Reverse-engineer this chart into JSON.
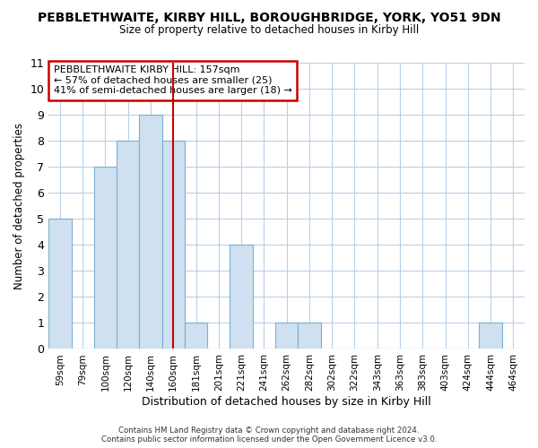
{
  "title": "PEBBLETHWAITE, KIRBY HILL, BOROUGHBRIDGE, YORK, YO51 9DN",
  "subtitle": "Size of property relative to detached houses in Kirby Hill",
  "xlabel": "Distribution of detached houses by size in Kirby Hill",
  "ylabel": "Number of detached properties",
  "bin_labels": [
    "59sqm",
    "79sqm",
    "100sqm",
    "120sqm",
    "140sqm",
    "160sqm",
    "181sqm",
    "201sqm",
    "221sqm",
    "241sqm",
    "262sqm",
    "282sqm",
    "302sqm",
    "322sqm",
    "343sqm",
    "363sqm",
    "383sqm",
    "403sqm",
    "424sqm",
    "444sqm",
    "464sqm"
  ],
  "bar_heights": [
    5,
    0,
    7,
    8,
    9,
    8,
    1,
    0,
    4,
    0,
    1,
    1,
    0,
    0,
    0,
    0,
    0,
    0,
    0,
    1,
    0
  ],
  "bar_color": "#cfe0f0",
  "bar_edgecolor": "#7bafd4",
  "vline_x": 5,
  "vline_color": "#cc0000",
  "ylim": [
    0,
    11
  ],
  "yticks": [
    0,
    1,
    2,
    3,
    4,
    5,
    6,
    7,
    8,
    9,
    10,
    11
  ],
  "annotation_title": "PEBBLETHWAITE KIRBY HILL: 157sqm",
  "annotation_line1": "← 57% of detached houses are smaller (25)",
  "annotation_line2": "41% of semi-detached houses are larger (18) →",
  "footer1": "Contains HM Land Registry data © Crown copyright and database right 2024.",
  "footer2": "Contains public sector information licensed under the Open Government Licence v3.0.",
  "bg_color": "#ffffff",
  "grid_color": "#b8d0e8"
}
